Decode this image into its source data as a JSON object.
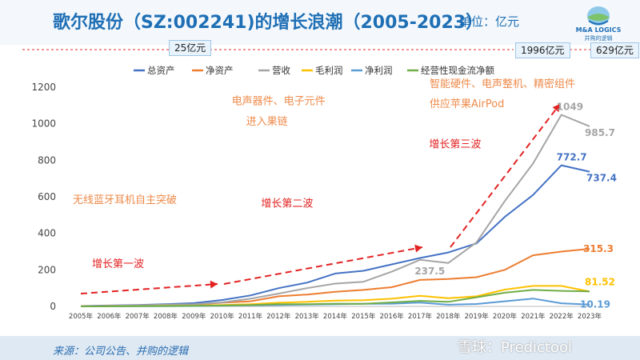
{
  "header": {
    "title": "歌尔股份（SZ:002241)的增长浪潮（2005-2023）",
    "unit": "单位：亿元",
    "logo_text": "M&A LOGICS",
    "logo_sub": "并购的逻辑"
  },
  "badges": {
    "cap_2010": "25亿元",
    "cap_2022": "1996亿元",
    "cap_2023": "629亿元"
  },
  "footer": {
    "source": "来源：公司公告、并购的逻辑",
    "watermark": "雪球：Predictool"
  },
  "colors": {
    "title": "#1f6fb5",
    "total_assets": "#4472c4",
    "net_assets": "#ed7d31",
    "revenue": "#a5a5a5",
    "gross_profit": "#ffc000",
    "net_profit": "#5b9bd5",
    "operating_cash_flow": "#70ad47",
    "wave_arrow": "#e32222",
    "annotation": "#ee8a4a"
  },
  "chart_data": {
    "type": "line",
    "categories": [
      "2005年",
      "2006年",
      "2007年",
      "2008年",
      "2009年",
      "2010年",
      "2011年",
      "2012年",
      "2013年",
      "2014年",
      "2015年",
      "2016年",
      "2017年",
      "2018年",
      "2019年",
      "2020年",
      "2021年",
      "2022年",
      "2023年"
    ],
    "ylim": [
      0,
      1200
    ],
    "yticks": [
      0,
      200,
      400,
      600,
      800,
      1000,
      1200
    ],
    "legend_position": "top",
    "grid": false,
    "series": [
      {
        "key": "total_assets",
        "name": "总资产",
        "values": [
          2,
          5,
          8,
          12,
          18,
          35,
          60,
          100,
          130,
          180,
          195,
          230,
          265,
          295,
          345,
          490,
          610,
          772.7,
          737.4
        ]
      },
      {
        "key": "net_assets",
        "name": "净资产",
        "values": [
          1,
          3,
          5,
          7,
          10,
          20,
          28,
          55,
          65,
          80,
          90,
          105,
          145,
          150,
          160,
          200,
          280,
          300,
          315.3
        ]
      },
      {
        "key": "revenue",
        "name": "营收",
        "values": [
          1,
          3,
          6,
          9,
          12,
          22,
          42,
          70,
          100,
          125,
          135,
          190,
          255,
          237.5,
          351,
          577,
          782,
          1049,
          985.7
        ]
      },
      {
        "key": "gross_profit",
        "name": "毛利润",
        "values": [
          0.5,
          1,
          2,
          3,
          4,
          8,
          12,
          20,
          25,
          32,
          34,
          42,
          58,
          45,
          55,
          92,
          112,
          112,
          81.52
        ]
      },
      {
        "key": "net_profit",
        "name": "净利润",
        "values": [
          0.2,
          0.5,
          1,
          1.5,
          2,
          4,
          6,
          8,
          10,
          12,
          14,
          15,
          21,
          9,
          13,
          28,
          43,
          17,
          10.19
        ]
      },
      {
        "key": "operating_cash_flow",
        "name": "经营性现金流净额",
        "values": [
          0.1,
          0.5,
          1,
          2,
          3,
          5,
          8,
          12,
          12,
          15,
          14,
          22,
          30,
          25,
          50,
          75,
          90,
          85,
          82
        ]
      }
    ],
    "value_labels": [
      {
        "series": "revenue",
        "year": "2022年",
        "text": "1049"
      },
      {
        "series": "revenue",
        "year": "2023年",
        "text": "985.7"
      },
      {
        "series": "total_assets",
        "year": "2022年",
        "text": "772.7"
      },
      {
        "series": "total_assets",
        "year": "2023年",
        "text": "737.4"
      },
      {
        "series": "net_assets",
        "year": "2023年",
        "text": "315.3"
      },
      {
        "series": "revenue",
        "year": "2018年",
        "text": "237.5"
      },
      {
        "series": "gross_profit",
        "year": "2023年",
        "text": "81.52"
      },
      {
        "series": "net_profit",
        "year": "2023年",
        "text": "10.19"
      }
    ],
    "annotations": [
      {
        "text": "无线蓝牙耳机自主突破",
        "anchor_year": "2005年",
        "anchor_value": 565
      },
      {
        "text": "电声器件、电子元件",
        "anchor_year": "2010年",
        "anchor_value": 1105
      },
      {
        "text": "进入果链",
        "anchor_year": "2010年",
        "anchor_value": 995
      },
      {
        "text": "智能硬件、电声整机、精密组件",
        "anchor_year": "2017年",
        "anchor_value": 1200
      },
      {
        "text": "供应苹果AirPod",
        "anchor_year": "2017年",
        "anchor_value": 1090
      }
    ],
    "waves": [
      {
        "text": "增长第一波",
        "anchor_year": "2005年",
        "anchor_value": 215
      },
      {
        "text": "增长第二波",
        "anchor_year": "2012年",
        "anchor_value": 545
      },
      {
        "text": "增长第三波",
        "anchor_year": "2018年",
        "anchor_value": 870
      }
    ]
  }
}
